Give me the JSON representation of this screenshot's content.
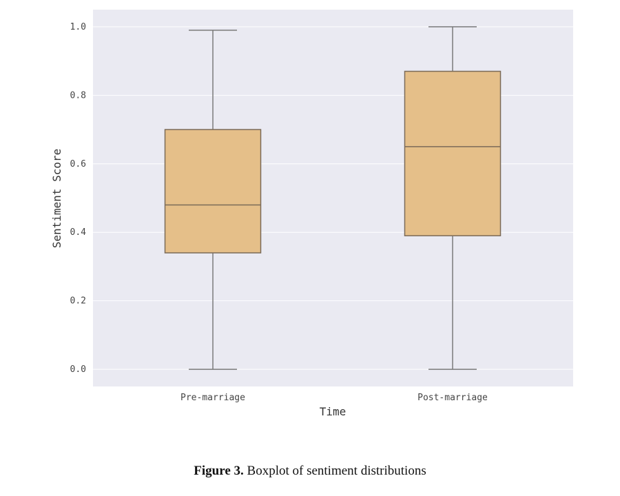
{
  "chart_data": {
    "type": "box",
    "xlabel": "Time",
    "ylabel": "Sentiment Score",
    "ylim": [
      -0.05,
      1.05
    ],
    "yticks": [
      0.0,
      0.2,
      0.4,
      0.6,
      0.8,
      1.0
    ],
    "ytick_labels": [
      "0.0",
      "0.2",
      "0.4",
      "0.6",
      "0.8",
      "1.0"
    ],
    "categories": [
      "Pre-marriage",
      "Post-marriage"
    ],
    "boxes": [
      {
        "category": "Pre-marriage",
        "whisker_low": 0.0,
        "q1": 0.34,
        "median": 0.48,
        "q3": 0.7,
        "whisker_high": 0.99
      },
      {
        "category": "Post-marriage",
        "whisker_low": 0.0,
        "q1": 0.39,
        "median": 0.65,
        "q3": 0.87,
        "whisker_high": 1.0
      }
    ],
    "grid": true,
    "colors": {
      "plot_background": "#eaeaf2",
      "grid": "#ffffff",
      "box_fill": "#e5bf89",
      "box_edge": "#7a6a58",
      "whisker": "#7a7a7a"
    }
  },
  "caption": {
    "label": "Figure 3.",
    "text": "Boxplot of sentiment distributions"
  }
}
